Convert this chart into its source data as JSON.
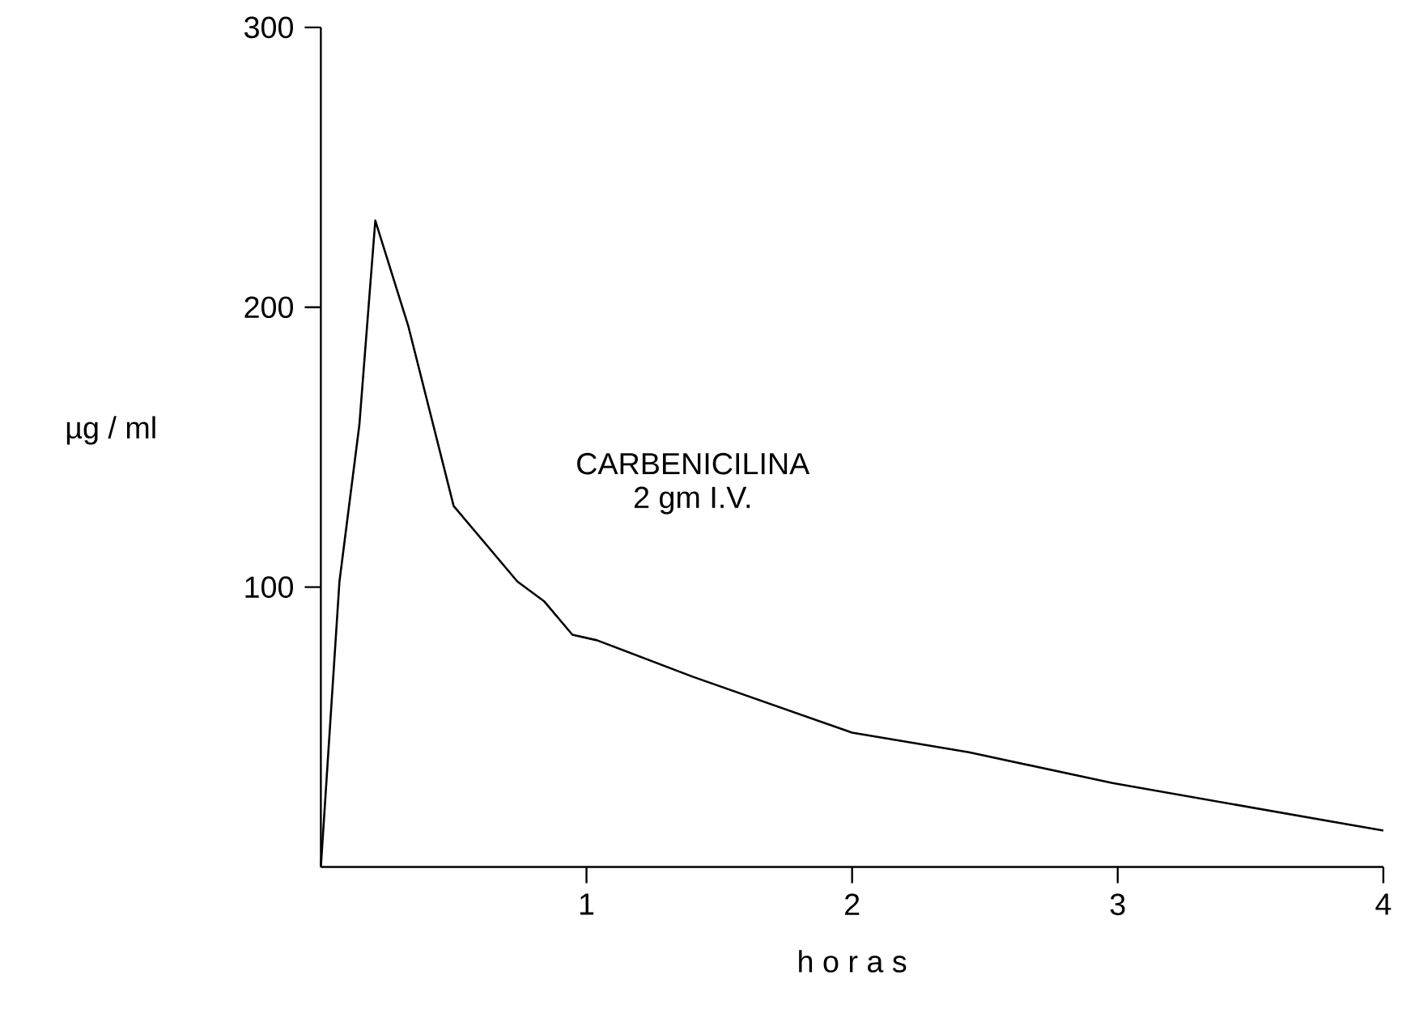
{
  "chart_data": {
    "type": "line",
    "xlabel": "h o r a s",
    "ylabel": "µg / ml",
    "annotations": [
      "CARBENICILINA",
      "2 gm  I.V."
    ],
    "x": [
      0,
      0.07,
      0.145,
      0.205,
      0.33,
      0.5,
      0.74,
      0.84,
      0.947,
      1.04,
      1.4,
      2.0,
      2.44,
      2.98,
      4.0
    ],
    "values": [
      0,
      102,
      158,
      231,
      193,
      129,
      102,
      95,
      83,
      81,
      68,
      48,
      41,
      30,
      13
    ],
    "color": "#000000",
    "xlim": [
      0,
      4
    ],
    "ylim": [
      0,
      300
    ],
    "xticks": [
      1,
      2,
      3,
      4
    ],
    "yticks": [
      100,
      200,
      300
    ]
  }
}
